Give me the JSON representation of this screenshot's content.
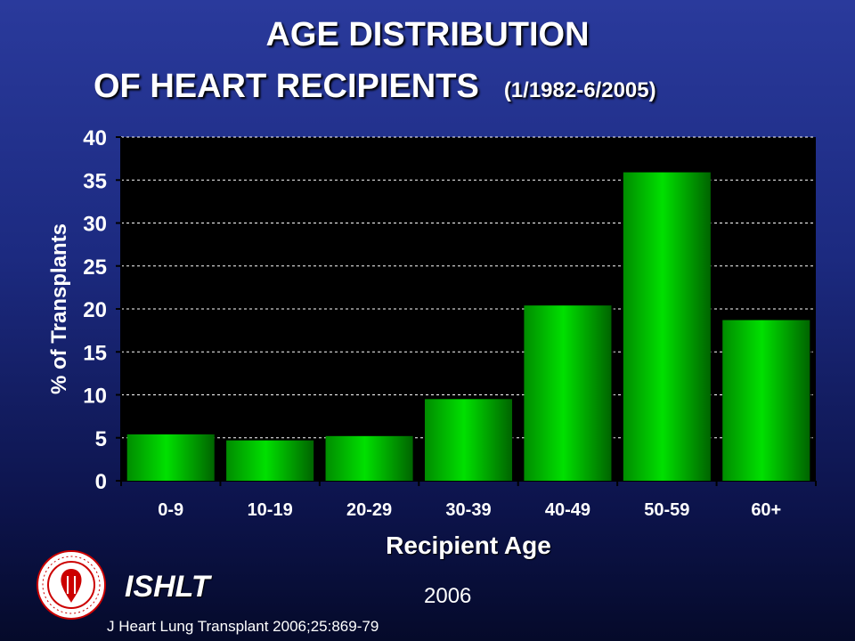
{
  "title": {
    "line1": "AGE DISTRIBUTION",
    "line2": "OF HEART RECIPIENTS",
    "date_range": "(1/1982-6/2005)"
  },
  "chart_data": {
    "type": "bar",
    "categories": [
      "0-9",
      "10-19",
      "20-29",
      "30-39",
      "40-49",
      "50-59",
      "60+"
    ],
    "values": [
      5.4,
      4.7,
      5.2,
      9.5,
      20.4,
      35.9,
      18.7
    ],
    "xlabel": "Recipient Age",
    "ylabel": "% of Transplants",
    "ylim": [
      0,
      40
    ],
    "yticks": [
      0,
      5,
      10,
      15,
      20,
      25,
      30,
      35,
      40
    ],
    "grid": true,
    "colors": {
      "bar": "#00e000",
      "plot_bg": "#000000",
      "grid": "#ffffff",
      "text": "#ffffff"
    }
  },
  "footer": {
    "organization": "ISHLT",
    "year": "2006",
    "citation": "J Heart Lung Transplant 2006;25:869-79"
  },
  "logo": {
    "icon": "ishlt-seal-icon",
    "ring_text": "INTERNATIONAL SOCIETY FOR HEART & LUNG TRANSPLANTATION"
  }
}
